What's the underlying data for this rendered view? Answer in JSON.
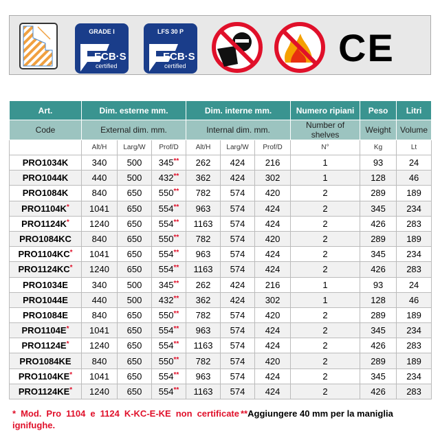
{
  "badges": [
    {
      "title": "GRADE I",
      "brand": "ECB·S",
      "sub": "certified"
    },
    {
      "title": "LFS 30 P",
      "brand": "ECB·S",
      "sub": "certified"
    }
  ],
  "icons": [
    "wall-section-icon",
    "anti-burglary-icon",
    "fire-icon",
    "ce-mark-icon"
  ],
  "ce_mark": "CE",
  "colors": {
    "header": "#3a9490",
    "subheader": "#9cc4c0",
    "badge": "#1a3d8a",
    "note": "#e0102a"
  },
  "table": {
    "header_it": [
      "Art.",
      "Dim. esterne mm.",
      "Dim. interne mm.",
      "Numero ripiani",
      "Peso",
      "Litri"
    ],
    "header_en": [
      "Code",
      "External dim. mm.",
      "Internal dim. mm.",
      "Number of shelves",
      "Weight",
      "Volume"
    ],
    "units": [
      "",
      "Alt/H",
      "Larg/W",
      "Prof/D",
      "Alt/H",
      "Larg/W",
      "Prof/D",
      "N°",
      "Kg",
      "Lt"
    ],
    "rows": [
      {
        "code": "PRO1034K",
        "star": "",
        "ext": [
          "340",
          "500",
          "345"
        ],
        "int": [
          "262",
          "424",
          "216"
        ],
        "shelves": "1",
        "kg": "93",
        "lt": "24"
      },
      {
        "code": "PRO1044K",
        "star": "",
        "ext": [
          "440",
          "500",
          "432"
        ],
        "int": [
          "362",
          "424",
          "302"
        ],
        "shelves": "1",
        "kg": "128",
        "lt": "46"
      },
      {
        "code": "PRO1084K",
        "star": "",
        "ext": [
          "840",
          "650",
          "550"
        ],
        "int": [
          "782",
          "574",
          "420"
        ],
        "shelves": "2",
        "kg": "289",
        "lt": "189"
      },
      {
        "code": "PRO1104K",
        "star": "*",
        "ext": [
          "1041",
          "650",
          "554"
        ],
        "int": [
          "963",
          "574",
          "424"
        ],
        "shelves": "2",
        "kg": "345",
        "lt": "234"
      },
      {
        "code": "PRO1124K",
        "star": "*",
        "ext": [
          "1240",
          "650",
          "554"
        ],
        "int": [
          "1163",
          "574",
          "424"
        ],
        "shelves": "2",
        "kg": "426",
        "lt": "283"
      },
      {
        "code": "PRO1084KC",
        "star": "",
        "ext": [
          "840",
          "650",
          "550"
        ],
        "int": [
          "782",
          "574",
          "420"
        ],
        "shelves": "2",
        "kg": "289",
        "lt": "189"
      },
      {
        "code": "PRO1104KC",
        "star": "*",
        "ext": [
          "1041",
          "650",
          "554"
        ],
        "int": [
          "963",
          "574",
          "424"
        ],
        "shelves": "2",
        "kg": "345",
        "lt": "234"
      },
      {
        "code": "PRO1124KC",
        "star": "*",
        "ext": [
          "1240",
          "650",
          "554"
        ],
        "int": [
          "1163",
          "574",
          "424"
        ],
        "shelves": "2",
        "kg": "426",
        "lt": "283"
      },
      {
        "code": "PRO1034E",
        "star": "",
        "ext": [
          "340",
          "500",
          "345"
        ],
        "int": [
          "262",
          "424",
          "216"
        ],
        "shelves": "1",
        "kg": "93",
        "lt": "24"
      },
      {
        "code": "PRO1044E",
        "star": "",
        "ext": [
          "440",
          "500",
          "432"
        ],
        "int": [
          "362",
          "424",
          "302"
        ],
        "shelves": "1",
        "kg": "128",
        "lt": "46"
      },
      {
        "code": "PRO1084E",
        "star": "",
        "ext": [
          "840",
          "650",
          "550"
        ],
        "int": [
          "782",
          "574",
          "420"
        ],
        "shelves": "2",
        "kg": "289",
        "lt": "189"
      },
      {
        "code": "PRO1104E",
        "star": "*",
        "ext": [
          "1041",
          "650",
          "554"
        ],
        "int": [
          "963",
          "574",
          "424"
        ],
        "shelves": "2",
        "kg": "345",
        "lt": "234"
      },
      {
        "code": "PRO1124E",
        "star": "*",
        "ext": [
          "1240",
          "650",
          "554"
        ],
        "int": [
          "1163",
          "574",
          "424"
        ],
        "shelves": "2",
        "kg": "426",
        "lt": "283"
      },
      {
        "code": "PRO1084KE",
        "star": "",
        "ext": [
          "840",
          "650",
          "550"
        ],
        "int": [
          "782",
          "574",
          "420"
        ],
        "shelves": "2",
        "kg": "289",
        "lt": "189"
      },
      {
        "code": "PRO1104KE",
        "star": "*",
        "ext": [
          "1041",
          "650",
          "554"
        ],
        "int": [
          "963",
          "574",
          "424"
        ],
        "shelves": "2",
        "kg": "345",
        "lt": "234"
      },
      {
        "code": "PRO1124KE",
        "star": "*",
        "ext": [
          "1240",
          "650",
          "554"
        ],
        "int": [
          "1163",
          "574",
          "424"
        ],
        "shelves": "2",
        "kg": "426",
        "lt": "283"
      }
    ],
    "prof_mark": "**"
  },
  "notes": {
    "star_note": "* Mod. Pro 1104 e 1124 K-KC-E-KE non certificate ignifughe.",
    "double_star_mark": "**",
    "double_star_note": "Aggiungere 40 mm per la maniglia"
  }
}
